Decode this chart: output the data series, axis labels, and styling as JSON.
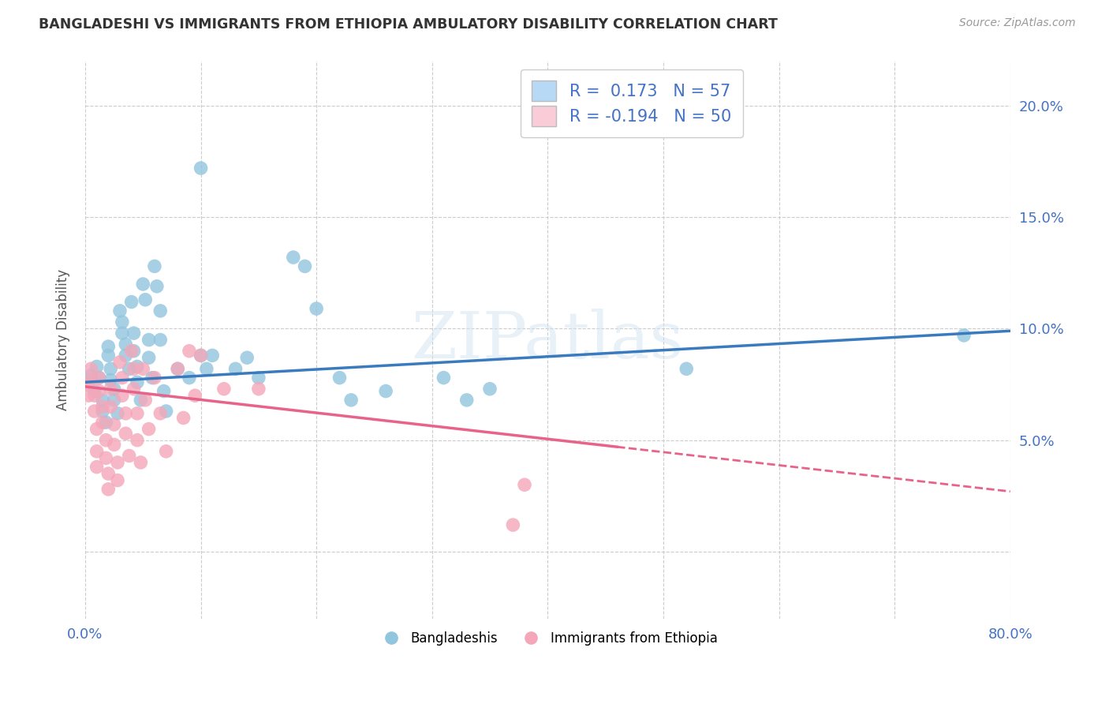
{
  "title": "BANGLADESHI VS IMMIGRANTS FROM ETHIOPIA AMBULATORY DISABILITY CORRELATION CHART",
  "source": "Source: ZipAtlas.com",
  "ylabel": "Ambulatory Disability",
  "watermark": "ZIPatlas",
  "xlim": [
    0.0,
    0.8
  ],
  "ylim": [
    -0.03,
    0.22
  ],
  "xticks": [
    0.0,
    0.1,
    0.2,
    0.3,
    0.4,
    0.5,
    0.6,
    0.7,
    0.8
  ],
  "xticklabels": [
    "0.0%",
    "",
    "",
    "",
    "",
    "",
    "",
    "",
    "80.0%"
  ],
  "yticks": [
    0.0,
    0.05,
    0.1,
    0.15,
    0.2
  ],
  "yticklabels": [
    "",
    "5.0%",
    "10.0%",
    "15.0%",
    "20.0%"
  ],
  "color_blue": "#92c5de",
  "color_pink": "#f4a7b9",
  "line_color_blue": "#3a7abf",
  "line_color_pink": "#e8638a",
  "background_color": "#ffffff",
  "grid_color": "#cccccc",
  "legend_box_color_blue": "#b8d9f5",
  "legend_box_color_pink": "#f9ccd8",
  "blue_scatter": [
    [
      0.005,
      0.079
    ],
    [
      0.008,
      0.072
    ],
    [
      0.01,
      0.083
    ],
    [
      0.012,
      0.078
    ],
    [
      0.015,
      0.068
    ],
    [
      0.015,
      0.063
    ],
    [
      0.018,
      0.058
    ],
    [
      0.02,
      0.092
    ],
    [
      0.02,
      0.088
    ],
    [
      0.022,
      0.082
    ],
    [
      0.022,
      0.077
    ],
    [
      0.025,
      0.073
    ],
    [
      0.025,
      0.068
    ],
    [
      0.028,
      0.062
    ],
    [
      0.03,
      0.108
    ],
    [
      0.032,
      0.103
    ],
    [
      0.032,
      0.098
    ],
    [
      0.035,
      0.093
    ],
    [
      0.035,
      0.088
    ],
    [
      0.038,
      0.082
    ],
    [
      0.04,
      0.112
    ],
    [
      0.042,
      0.098
    ],
    [
      0.042,
      0.09
    ],
    [
      0.045,
      0.083
    ],
    [
      0.045,
      0.076
    ],
    [
      0.048,
      0.068
    ],
    [
      0.05,
      0.12
    ],
    [
      0.052,
      0.113
    ],
    [
      0.055,
      0.095
    ],
    [
      0.055,
      0.087
    ],
    [
      0.058,
      0.078
    ],
    [
      0.06,
      0.128
    ],
    [
      0.062,
      0.119
    ],
    [
      0.065,
      0.108
    ],
    [
      0.065,
      0.095
    ],
    [
      0.068,
      0.072
    ],
    [
      0.07,
      0.063
    ],
    [
      0.08,
      0.082
    ],
    [
      0.09,
      0.078
    ],
    [
      0.1,
      0.172
    ],
    [
      0.1,
      0.088
    ],
    [
      0.105,
      0.082
    ],
    [
      0.11,
      0.088
    ],
    [
      0.13,
      0.082
    ],
    [
      0.14,
      0.087
    ],
    [
      0.15,
      0.078
    ],
    [
      0.18,
      0.132
    ],
    [
      0.19,
      0.128
    ],
    [
      0.2,
      0.109
    ],
    [
      0.22,
      0.078
    ],
    [
      0.23,
      0.068
    ],
    [
      0.26,
      0.072
    ],
    [
      0.31,
      0.078
    ],
    [
      0.33,
      0.068
    ],
    [
      0.35,
      0.073
    ],
    [
      0.52,
      0.082
    ],
    [
      0.76,
      0.097
    ]
  ],
  "pink_scatter": [
    [
      0.002,
      0.075
    ],
    [
      0.003,
      0.07
    ],
    [
      0.005,
      0.082
    ],
    [
      0.005,
      0.077
    ],
    [
      0.008,
      0.07
    ],
    [
      0.008,
      0.063
    ],
    [
      0.01,
      0.055
    ],
    [
      0.01,
      0.045
    ],
    [
      0.01,
      0.038
    ],
    [
      0.012,
      0.078
    ],
    [
      0.012,
      0.072
    ],
    [
      0.015,
      0.065
    ],
    [
      0.015,
      0.058
    ],
    [
      0.018,
      0.05
    ],
    [
      0.018,
      0.042
    ],
    [
      0.02,
      0.035
    ],
    [
      0.02,
      0.028
    ],
    [
      0.022,
      0.073
    ],
    [
      0.022,
      0.065
    ],
    [
      0.025,
      0.057
    ],
    [
      0.025,
      0.048
    ],
    [
      0.028,
      0.04
    ],
    [
      0.028,
      0.032
    ],
    [
      0.03,
      0.085
    ],
    [
      0.032,
      0.078
    ],
    [
      0.032,
      0.07
    ],
    [
      0.035,
      0.062
    ],
    [
      0.035,
      0.053
    ],
    [
      0.038,
      0.043
    ],
    [
      0.04,
      0.09
    ],
    [
      0.042,
      0.082
    ],
    [
      0.042,
      0.073
    ],
    [
      0.045,
      0.062
    ],
    [
      0.045,
      0.05
    ],
    [
      0.048,
      0.04
    ],
    [
      0.05,
      0.082
    ],
    [
      0.052,
      0.068
    ],
    [
      0.055,
      0.055
    ],
    [
      0.06,
      0.078
    ],
    [
      0.065,
      0.062
    ],
    [
      0.07,
      0.045
    ],
    [
      0.08,
      0.082
    ],
    [
      0.085,
      0.06
    ],
    [
      0.09,
      0.09
    ],
    [
      0.095,
      0.07
    ],
    [
      0.1,
      0.088
    ],
    [
      0.12,
      0.073
    ],
    [
      0.15,
      0.073
    ],
    [
      0.38,
      0.03
    ],
    [
      0.37,
      0.012
    ]
  ],
  "blue_line": {
    "x0": 0.0,
    "y0": 0.076,
    "x1": 0.8,
    "y1": 0.099
  },
  "pink_line_solid": {
    "x0": 0.0,
    "y0": 0.074,
    "x1": 0.46,
    "y1": 0.047
  },
  "pink_line_dash": {
    "x0": 0.46,
    "y0": 0.047,
    "x1": 0.8,
    "y1": 0.027
  }
}
